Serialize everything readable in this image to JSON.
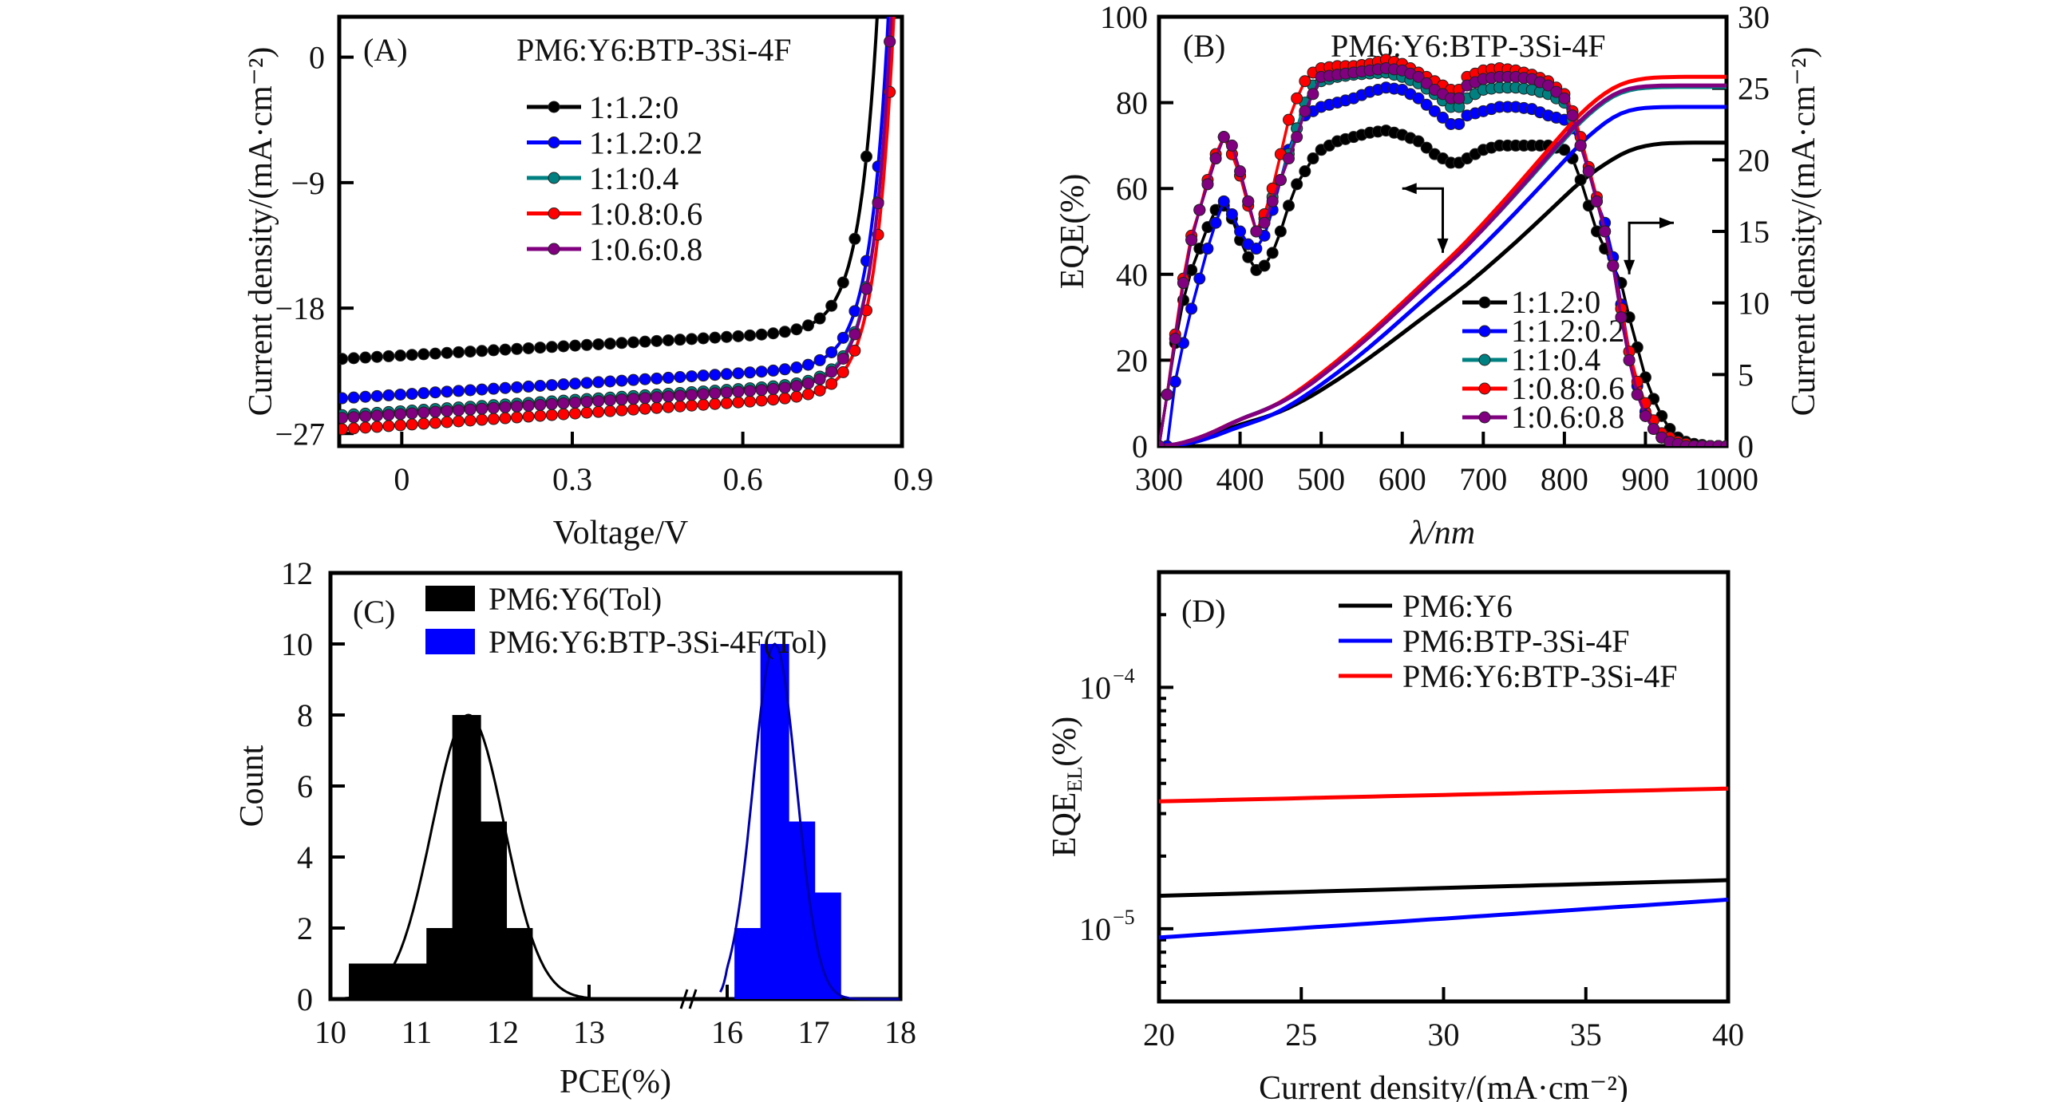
{
  "figure": {
    "panels": [
      "A",
      "B",
      "C",
      "D"
    ]
  },
  "chart_data": [
    {
      "id": "A",
      "type": "line",
      "panel_label": "(A)",
      "title": "PM6:Y6:BTP-3Si-4F",
      "xlabel": "Voltage/V",
      "ylabel": "Current density/(mA·cm⁻²)",
      "xlim": [
        -0.11,
        0.88
      ],
      "ylim": [
        -27.9,
        2.9
      ],
      "xticks": [
        0,
        0.3,
        0.6,
        0.9
      ],
      "xtick_labels": [
        "0",
        "0.3",
        "0.6",
        "0.9"
      ],
      "yticks": [
        0,
        -9,
        -18,
        -27
      ],
      "ytick_labels": [
        "0",
        "−9",
        "−18",
        "−27"
      ],
      "grid": false,
      "legend_position": "top-center",
      "marker": "circle",
      "series": [
        {
          "name": "1:1.2:0",
          "color": "#000000",
          "jsc": -21.4,
          "voc": 0.832,
          "slope": 2.2
        },
        {
          "name": "1:1.2:0.2",
          "color": "#0000ff",
          "jsc": -24.2,
          "voc": 0.852,
          "slope": 2.6
        },
        {
          "name": "1:1:0.4",
          "color": "#008080",
          "jsc": -25.4,
          "voc": 0.857,
          "slope": 2.4
        },
        {
          "name": "1:0.8:0.6",
          "color": "#ff0000",
          "jsc": -26.4,
          "voc": 0.862,
          "slope": 2.4
        },
        {
          "name": "1:0.6:0.8",
          "color": "#800080",
          "jsc": -25.6,
          "voc": 0.857,
          "slope": 2.4
        }
      ]
    },
    {
      "id": "B",
      "type": "line",
      "panel_label": "(B)",
      "title": "PM6:Y6:BTP-3Si-4F",
      "xlabel": "λ/nm",
      "ylabel": "EQE(%)",
      "ylabel_right": "Current density/(mA·cm⁻²)",
      "xlim": [
        300,
        1000
      ],
      "ylim": [
        0,
        100
      ],
      "ylim_right": [
        0,
        30
      ],
      "xticks": [
        300,
        400,
        500,
        600,
        700,
        800,
        900,
        1000
      ],
      "yticks": [
        0,
        20,
        40,
        60,
        80,
        100
      ],
      "yticks_right": [
        0,
        5,
        10,
        15,
        20,
        25,
        30
      ],
      "grid": false,
      "legend_position": "bottom-center",
      "x": [
        300,
        310,
        320,
        330,
        340,
        350,
        360,
        370,
        380,
        390,
        400,
        410,
        420,
        430,
        440,
        450,
        460,
        470,
        480,
        490,
        500,
        520,
        540,
        560,
        580,
        600,
        620,
        640,
        660,
        670,
        680,
        700,
        720,
        740,
        760,
        780,
        800,
        810,
        820,
        830,
        840,
        850,
        860,
        870,
        880,
        890,
        900,
        910,
        920,
        930,
        940,
        950,
        960,
        980,
        1000
      ],
      "series": [
        {
          "name": "1:1.2:0",
          "color": "#000000",
          "integrated_jsc": 21.2,
          "eqe": [
            0,
            12,
            24,
            34,
            41,
            46,
            51,
            55,
            56,
            53,
            48,
            44,
            41,
            42,
            45,
            50,
            56,
            61,
            64,
            67,
            69,
            71,
            72,
            73,
            73.5,
            72.5,
            71,
            68,
            66,
            66,
            67,
            69,
            70,
            70,
            70,
            70,
            69,
            67,
            62,
            56,
            50,
            46,
            42,
            38,
            30,
            23,
            16,
            11,
            7,
            4,
            2,
            1,
            0.5,
            0,
            0
          ]
        },
        {
          "name": "1:1.2:0.2",
          "color": "#0000ff",
          "integrated_jsc": 23.7,
          "eqe": [
            0,
            0,
            15,
            24,
            32,
            39,
            46,
            52,
            57,
            54,
            50,
            47,
            46,
            49,
            55,
            62,
            69,
            74,
            77,
            78,
            79,
            80,
            81,
            82.5,
            83.5,
            83,
            81,
            78,
            75,
            75,
            77,
            78,
            79,
            79,
            78.5,
            77,
            76,
            74,
            70,
            64,
            57,
            52,
            44,
            33,
            22,
            14,
            8,
            4,
            2,
            1,
            0.5,
            0,
            0,
            0,
            0
          ]
        },
        {
          "name": "1:1:0.4",
          "color": "#008080",
          "integrated_jsc": 25.1,
          "eqe": [
            0,
            12,
            25,
            38,
            48,
            55,
            61,
            67,
            72,
            68,
            63,
            57,
            50,
            53,
            58,
            62,
            68,
            74,
            80,
            84,
            85,
            86,
            86.5,
            86.8,
            87,
            86,
            84.5,
            82,
            79,
            79,
            81,
            83,
            83.5,
            83.5,
            83,
            82,
            80,
            76,
            70,
            64,
            57,
            50,
            42,
            30,
            20,
            12,
            7,
            4,
            2,
            1,
            0.5,
            0,
            0,
            0,
            0
          ]
        },
        {
          "name": "1:0.8:0.6",
          "color": "#ff0000",
          "integrated_jsc": 25.8,
          "eqe": [
            0,
            12,
            26,
            39,
            49,
            55,
            62,
            68,
            72,
            68,
            63,
            56,
            50,
            54,
            60,
            68,
            76,
            81,
            85,
            87,
            88,
            88.5,
            88.5,
            89,
            90,
            89,
            87,
            85,
            83,
            83,
            86,
            87.5,
            88,
            87.5,
            86.5,
            85,
            82,
            78,
            72,
            65,
            58,
            50,
            42,
            32,
            22,
            15,
            10,
            6,
            3,
            2,
            1,
            0.5,
            0,
            0,
            0
          ]
        },
        {
          "name": "1:0.6:0.8",
          "color": "#800080",
          "integrated_jsc": 25.2,
          "eqe": [
            0,
            12,
            25,
            38,
            48,
            55,
            61,
            67,
            72,
            70,
            64,
            57,
            50,
            52,
            57,
            62,
            67,
            72,
            78,
            82,
            86,
            86.5,
            87,
            87.5,
            88,
            87.5,
            86,
            83,
            81,
            81,
            84,
            85.5,
            86,
            86,
            85.5,
            84,
            81,
            77,
            70,
            64,
            57,
            50,
            42,
            30,
            20,
            12,
            7,
            4,
            2,
            1,
            0.5,
            0,
            0,
            0,
            0
          ]
        }
      ],
      "annotations": [
        {
          "type": "arrow",
          "direction": "left",
          "meaning": "EQE axis"
        },
        {
          "type": "arrow",
          "direction": "right",
          "meaning": "Current density axis"
        }
      ]
    },
    {
      "id": "C",
      "type": "bar",
      "panel_label": "(C)",
      "xlabel": "PCE(%)",
      "ylabel": "Count",
      "xlim": [
        10,
        18
      ],
      "axis_break": [
        13,
        16
      ],
      "ylim": [
        0,
        12
      ],
      "xticks": [
        10,
        11,
        12,
        13,
        16,
        17,
        18
      ],
      "yticks": [
        0,
        2,
        4,
        6,
        8,
        10,
        12
      ],
      "grid": false,
      "legend_position": "top-center",
      "series": [
        {
          "name": "PM6:Y6(Tol)",
          "color": "#000000",
          "bins": [
            10.38,
            10.68,
            10.98,
            11.28,
            11.58,
            11.88,
            12.18
          ],
          "counts": [
            1,
            1,
            1,
            2,
            8,
            5,
            2
          ],
          "fit": {
            "type": "gaussian",
            "mean": 11.6,
            "sigma": 0.42,
            "peak": 8
          }
        },
        {
          "name": "PM6:Y6:BTP-3Si-4F(Tol)",
          "color": "#0000ff",
          "bins": [
            16.25,
            16.55,
            16.85,
            17.15
          ],
          "counts": [
            2,
            10,
            5,
            3
          ],
          "fit": {
            "type": "gaussian",
            "mean": 16.55,
            "sigma": 0.25,
            "peak": 10
          }
        }
      ]
    },
    {
      "id": "D",
      "type": "line",
      "panel_label": "(D)",
      "xlabel": "Current density/(mA·cm⁻²)",
      "ylabel": "EQE_EL(%)",
      "ylabel_main": "EQE",
      "ylabel_sub": "EL",
      "ylabel_tail": "(%)",
      "xlim": [
        20,
        40
      ],
      "ylim": [
        5e-06,
        0.0003
      ],
      "yscale": "log",
      "xticks": [
        20,
        25,
        30,
        35,
        40
      ],
      "yticks_major": [
        1e-05,
        0.0001
      ],
      "ytick_labels": [
        "10",
        "10"
      ],
      "ytick_exponents": [
        "−5",
        "−4"
      ],
      "grid": false,
      "legend_position": "top-right",
      "x": [
        20,
        40
      ],
      "series": [
        {
          "name": "PM6:Y6",
          "color": "#000000",
          "values": [
            1.37e-05,
            1.59e-05
          ]
        },
        {
          "name": "PM6:BTP-3Si-4F",
          "color": "#0000ff",
          "values": [
            9.2e-06,
            1.32e-05
          ]
        },
        {
          "name": "PM6:Y6:BTP-3Si-4F",
          "color": "#ff0000",
          "values": [
            3.37e-05,
            3.81e-05
          ]
        }
      ]
    }
  ]
}
